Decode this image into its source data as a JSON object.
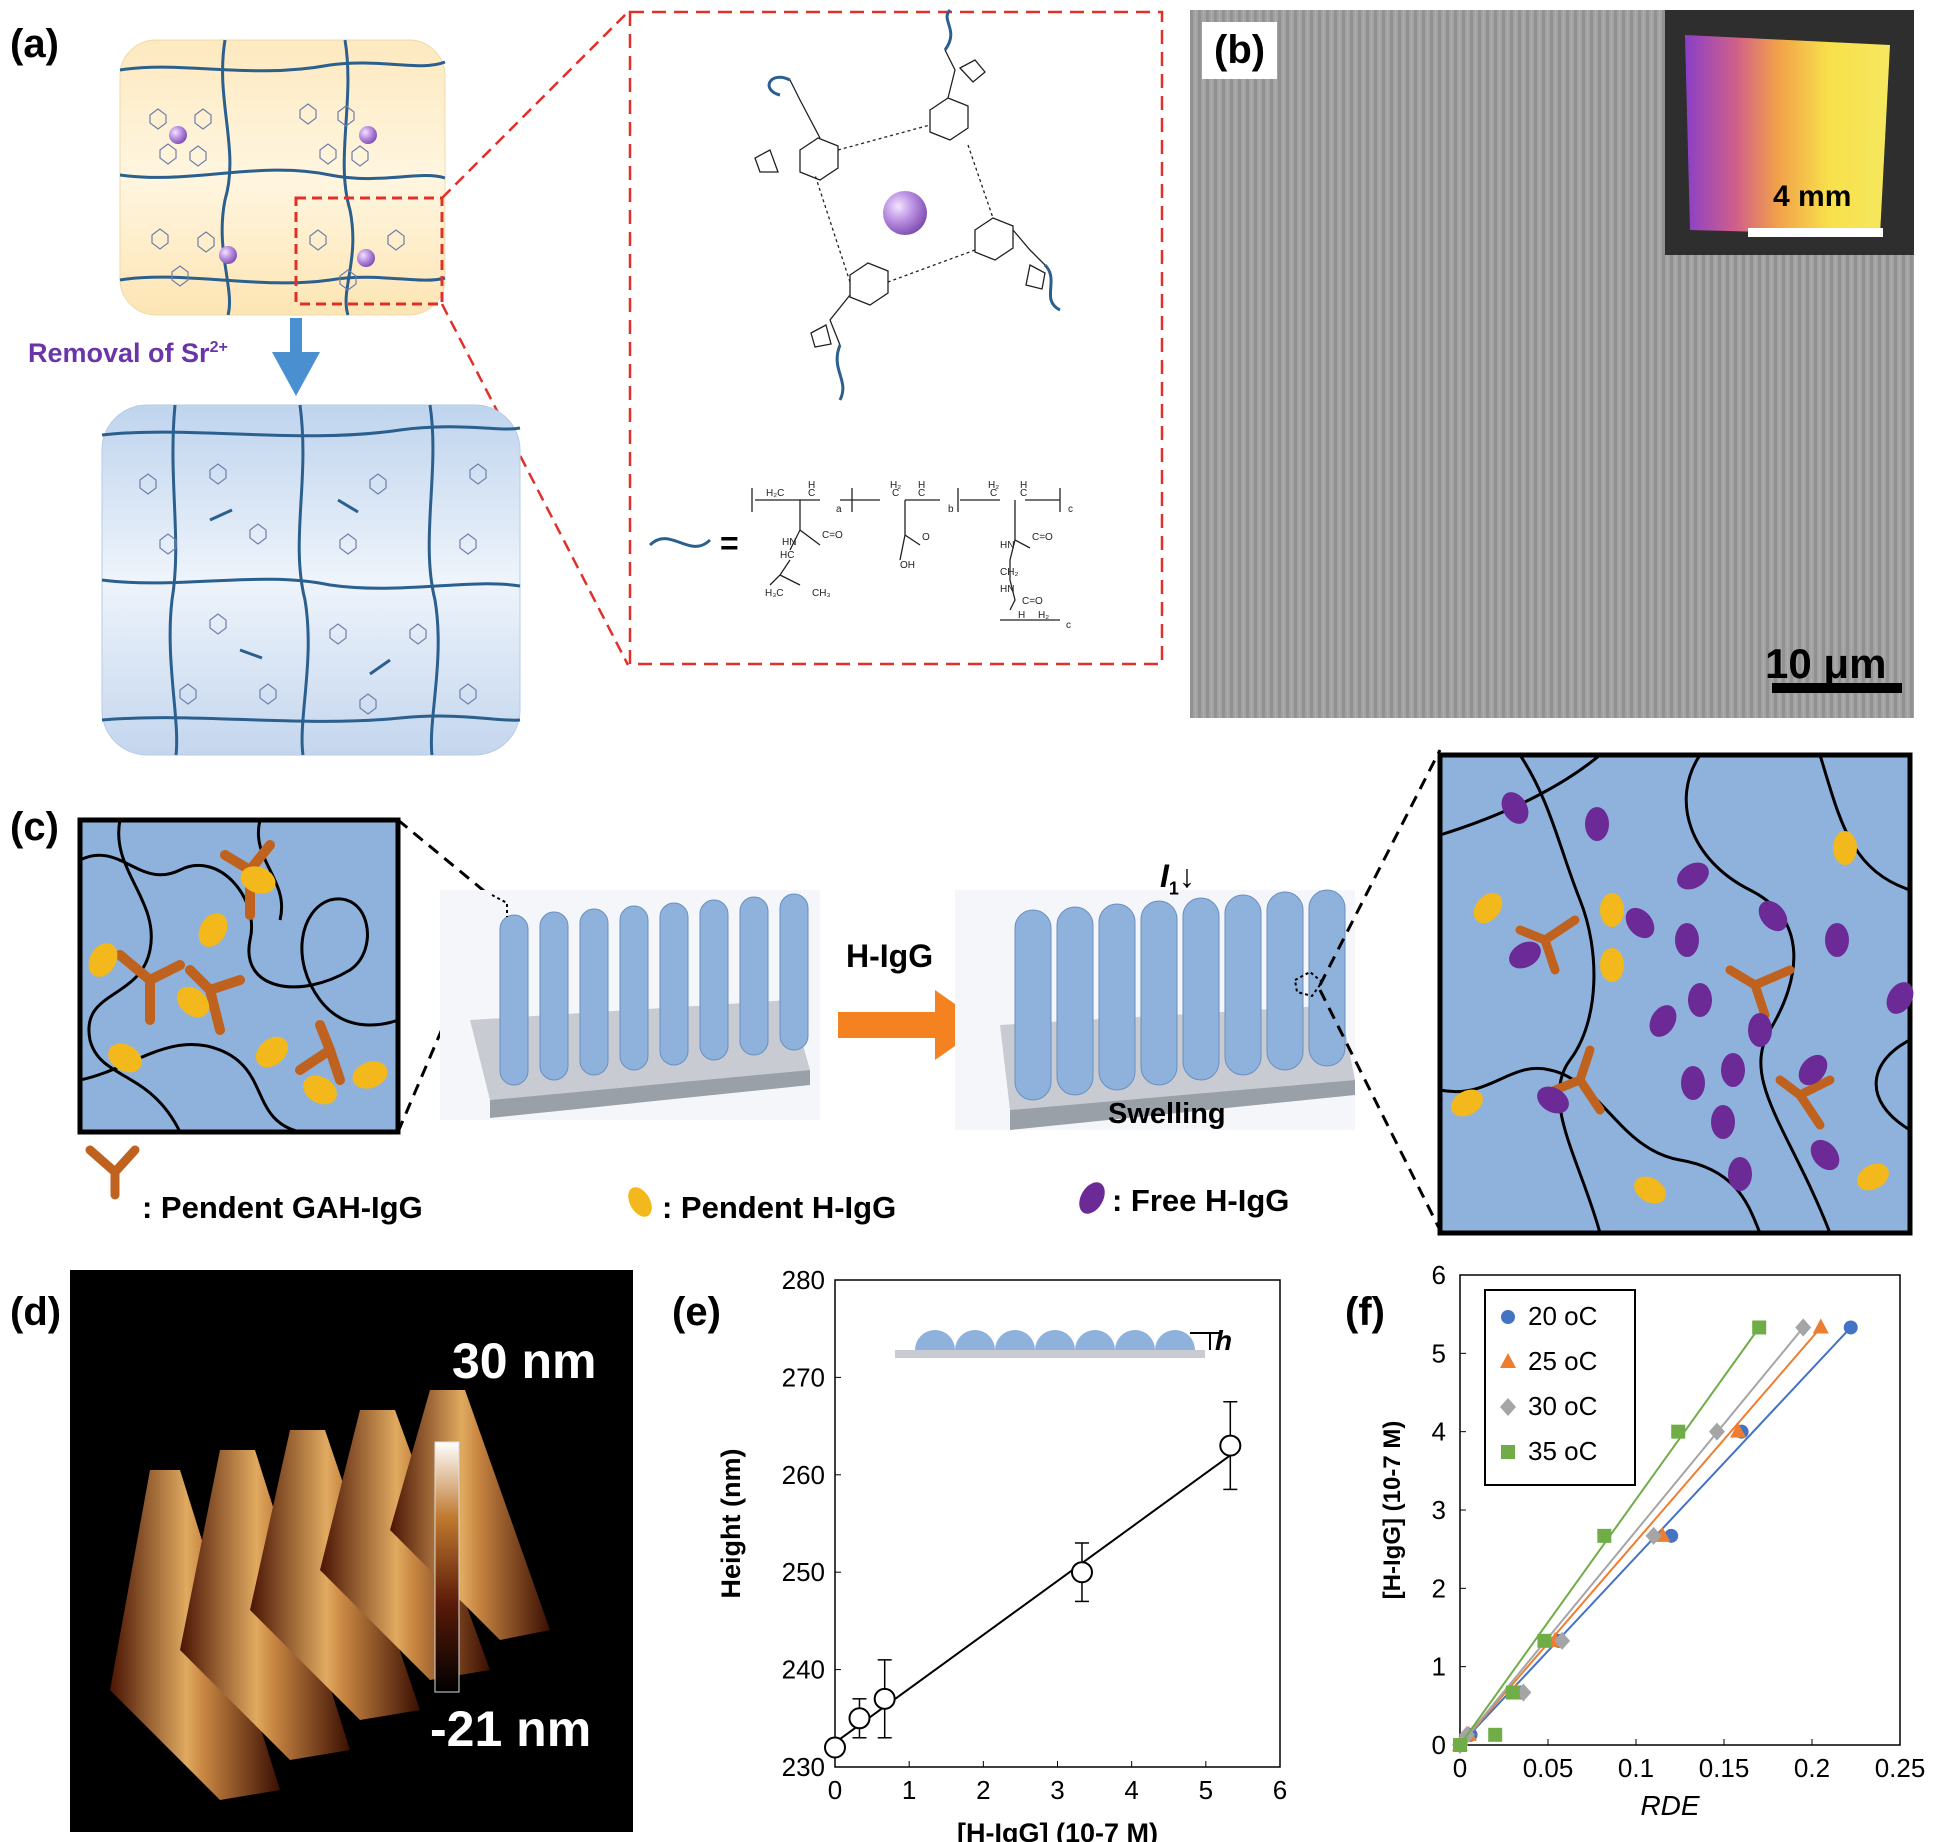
{
  "panels": {
    "a": {
      "label": "(a)",
      "removal_text": "Removal of Sr",
      "removal_sup": "2+",
      "equals": "=",
      "colors": {
        "accent": "#6a35a8",
        "arrow": "#4a90d0",
        "zoom_box": "#e0302a"
      }
    },
    "b": {
      "label": "(b)",
      "inset_scale": "4 mm",
      "scale": "10 μm"
    },
    "c": {
      "label": "(c)",
      "arrow_label": "H-IgG",
      "intensity_label": "I",
      "intensity_sub": "1",
      "intensity_arrow": "↓",
      "swelling": "Swelling",
      "legend": [
        {
          "icon": "y-antibody-icon",
          "text": ": Pendent GAH-IgG",
          "color": "#c0621f"
        },
        {
          "icon": "yellow-ellipse-icon",
          "text": ": Pendent H-IgG",
          "color": "#f3b81b"
        },
        {
          "icon": "purple-ellipse-icon",
          "text": ": Free H-IgG",
          "color": "#6b2a96"
        }
      ]
    },
    "d": {
      "label": "(d)",
      "max": "30 nm",
      "min": "-21 nm"
    },
    "e": {
      "label": "(e)",
      "inset_label": "h"
    },
    "f": {
      "label": "(f)"
    }
  },
  "chart_data": [
    {
      "id": "e",
      "type": "scatter",
      "xlabel": "[H-IgG] (10-7 M)",
      "ylabel": "Height (nm)",
      "xlim": [
        0,
        6
      ],
      "ylim": [
        230,
        280
      ],
      "xticks": [
        "0",
        "1",
        "2",
        "3",
        "4",
        "5",
        "6"
      ],
      "yticks": [
        "230",
        "240",
        "250",
        "260",
        "270",
        "280"
      ],
      "series": [
        {
          "x": [
            0,
            0.33,
            0.67,
            3.33,
            5.33
          ],
          "y": [
            232,
            235,
            237,
            250,
            263
          ],
          "err": [
            0,
            2,
            4,
            3,
            4.5
          ],
          "marker": "open-circle",
          "color": "#000000"
        }
      ],
      "fit": {
        "x": [
          0,
          5.33
        ],
        "y": [
          232.5,
          262
        ]
      }
    },
    {
      "id": "f",
      "type": "scatter",
      "xlabel": "RDE",
      "ylabel": "[H-IgG] (10-7 M)",
      "xlim": [
        0,
        0.25
      ],
      "ylim": [
        0,
        6
      ],
      "xticks": [
        "0",
        "0.05",
        "0.1",
        "0.15",
        "0.2",
        "0.25"
      ],
      "yticks": [
        "0",
        "1",
        "2",
        "3",
        "4",
        "5",
        "6"
      ],
      "legend_position": "top-left",
      "series": [
        {
          "name": "20 oC",
          "color": "#4472c4",
          "marker": "circle",
          "x": [
            0,
            0.006,
            0.034,
            0.056,
            0.12,
            0.16,
            0.222
          ],
          "y": [
            0,
            0.13,
            0.67,
            1.33,
            2.67,
            4.0,
            5.33
          ]
        },
        {
          "name": "25 oC",
          "color": "#ed7d31",
          "marker": "triangle",
          "x": [
            0,
            0.005,
            0.032,
            0.054,
            0.115,
            0.158,
            0.205
          ],
          "y": [
            0,
            0.13,
            0.67,
            1.33,
            2.67,
            4.0,
            5.33
          ]
        },
        {
          "name": "30 oC",
          "color": "#a5a5a5",
          "marker": "diamond",
          "x": [
            0,
            0.004,
            0.036,
            0.058,
            0.11,
            0.146,
            0.195
          ],
          "y": [
            0,
            0.13,
            0.67,
            1.33,
            2.67,
            4.0,
            5.33
          ]
        },
        {
          "name": "35 oC",
          "color": "#70ad47",
          "marker": "square",
          "x": [
            0,
            0.02,
            0.03,
            0.048,
            0.082,
            0.124,
            0.17
          ],
          "y": [
            0,
            0.13,
            0.67,
            1.33,
            2.67,
            4.0,
            5.33
          ]
        }
      ]
    }
  ]
}
